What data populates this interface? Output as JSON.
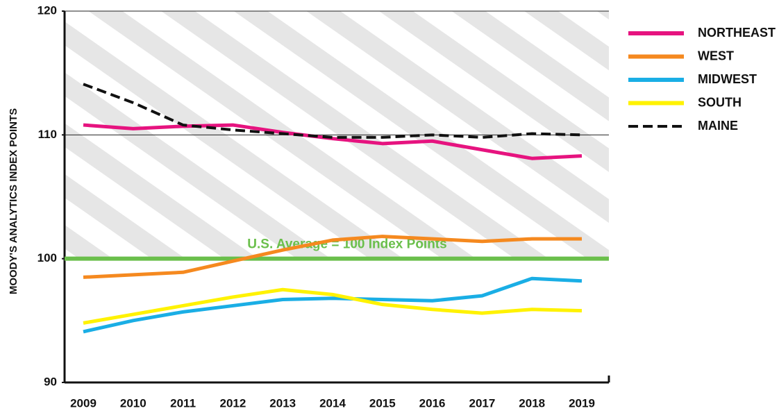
{
  "chart_data": {
    "type": "line",
    "y_label": "MOODY'S ANALYTICS INDEX POINTS",
    "categories": [
      "2009",
      "2010",
      "2011",
      "2012",
      "2013",
      "2014",
      "2015",
      "2016",
      "2017",
      "2018",
      "2019"
    ],
    "series": [
      {
        "name": "NORTHEAST",
        "color": "#e6137f",
        "values": [
          110.8,
          110.5,
          110.7,
          110.8,
          110.2,
          109.7,
          109.3,
          109.5,
          108.8,
          108.1,
          108.3
        ]
      },
      {
        "name": "WEST",
        "color": "#f5891f",
        "values": [
          98.5,
          98.7,
          98.9,
          99.8,
          100.7,
          101.5,
          101.8,
          101.6,
          101.4,
          101.6,
          101.6
        ]
      },
      {
        "name": "MIDWEST",
        "color": "#1aaee5",
        "values": [
          94.1,
          95.0,
          95.7,
          96.2,
          96.7,
          96.8,
          96.7,
          96.6,
          97.0,
          98.4,
          98.2
        ]
      },
      {
        "name": "SOUTH",
        "color": "#fff200",
        "values": [
          94.8,
          95.5,
          96.2,
          96.9,
          97.5,
          97.1,
          96.3,
          95.9,
          95.6,
          95.9,
          95.8
        ]
      },
      {
        "name": "MAINE",
        "color": "#111111",
        "dash": true,
        "values": [
          114.1,
          112.6,
          110.8,
          110.4,
          110.1,
          109.8,
          109.8,
          110.0,
          109.8,
          110.1,
          110.0
        ]
      }
    ],
    "reference_line": {
      "value": 100,
      "label": "U.S. Average = 100 Index Points",
      "color": "#6abf4b"
    },
    "ylim": [
      90,
      120
    ],
    "yticks": [
      90,
      100,
      110,
      120
    ],
    "grid_lines": [
      110,
      120
    ],
    "legend": "right"
  }
}
